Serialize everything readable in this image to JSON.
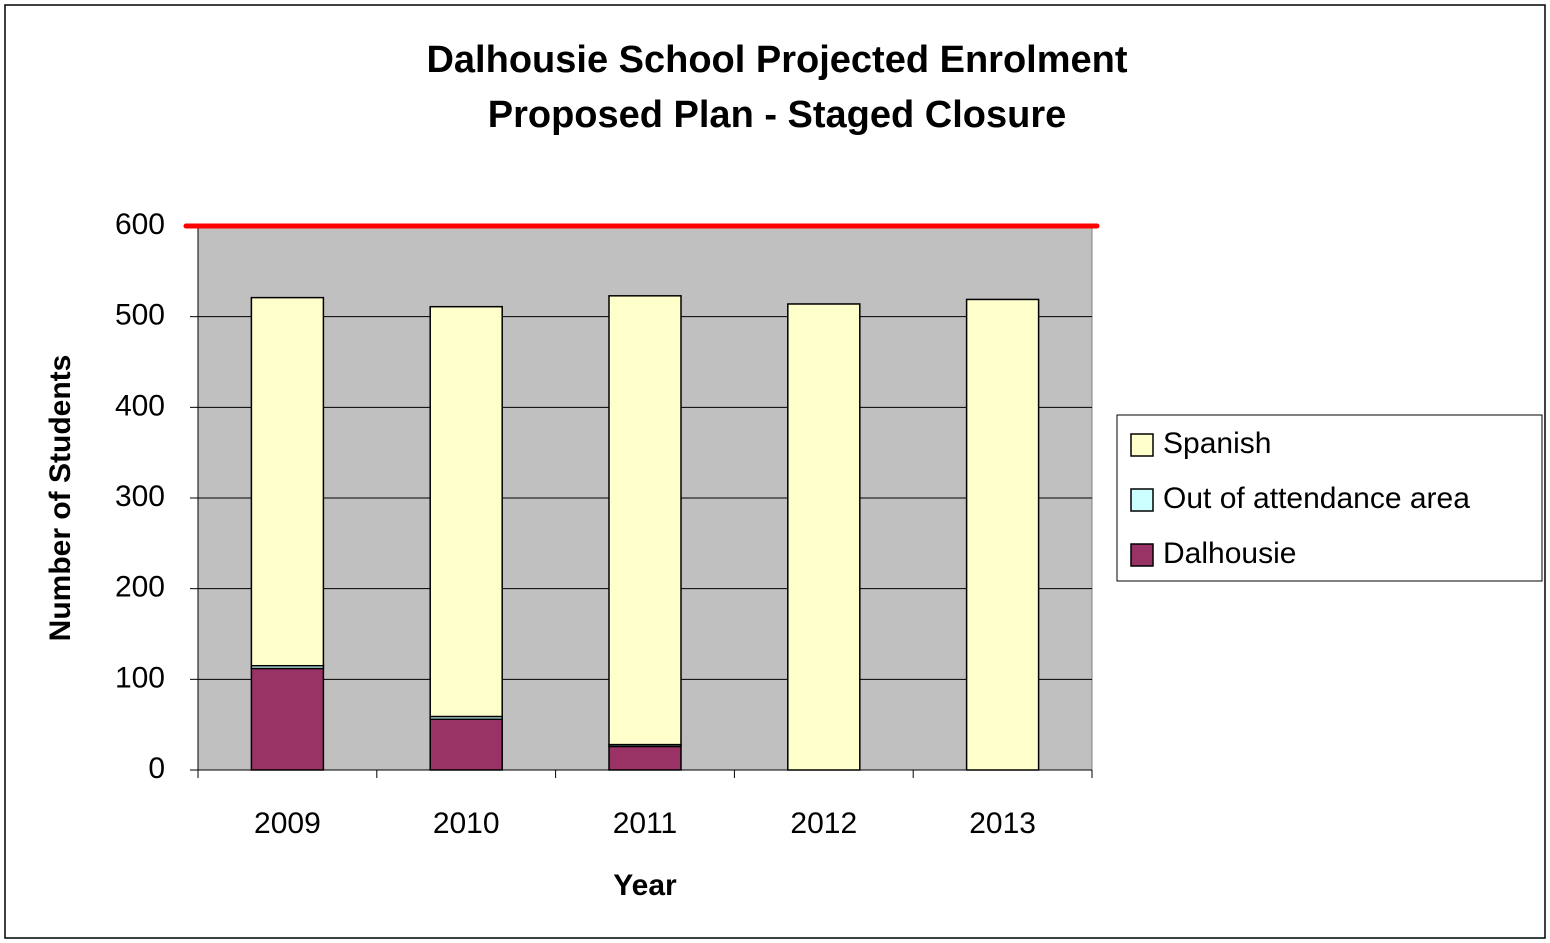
{
  "chart_data": {
    "type": "stacked_bar",
    "title": [
      "Dalhousie School Projected Enrolment",
      "Proposed Plan - Staged Closure"
    ],
    "xlabel": "Year",
    "ylabel": "Number of Students",
    "categories": [
      "2009",
      "2010",
      "2011",
      "2012",
      "2013"
    ],
    "series": [
      {
        "name": "Dalhousie",
        "color": "#993366",
        "values": [
          112,
          56,
          26,
          0,
          0
        ]
      },
      {
        "name": "Out of attendance area",
        "color": "#ccffff",
        "values": [
          3,
          3,
          2,
          0,
          0
        ]
      },
      {
        "name": "Spanish",
        "color": "#ffffcc",
        "values": [
          406,
          452,
          495,
          514,
          519
        ]
      }
    ],
    "reference_line": {
      "value": 600,
      "color": "#ff0000"
    },
    "ylim": [
      0,
      600
    ],
    "yticks": [
      0,
      100,
      200,
      300,
      400,
      500,
      600
    ],
    "grid": true,
    "legend": "right"
  }
}
